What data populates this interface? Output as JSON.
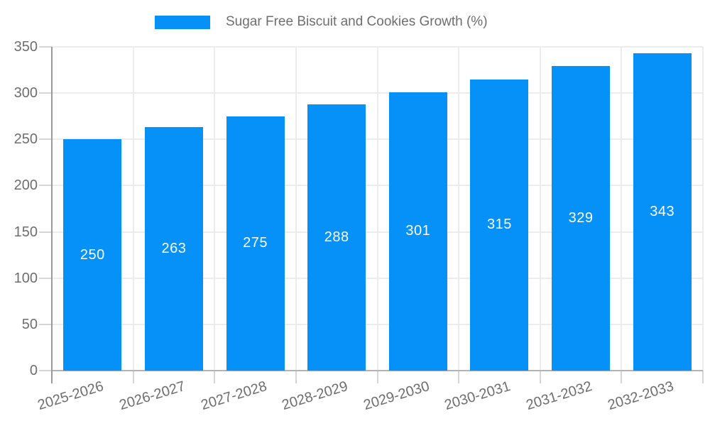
{
  "chart_data": {
    "type": "bar",
    "title": "Sugar Free Biscuit and Cookies Growth (%)",
    "legend": {
      "label": "Sugar Free Biscuit and Cookies Growth (%)",
      "position": "top-center"
    },
    "categories": [
      "2025-2026",
      "2026-2027",
      "2027-2028",
      "2028-2029",
      "2029-2030",
      "2030-2031",
      "2031-2032",
      "2032-2033"
    ],
    "values": [
      250,
      263,
      275,
      288,
      301,
      315,
      329,
      343
    ],
    "xlabel": "",
    "ylabel": "",
    "ylim": [
      0,
      350
    ],
    "yticks": [
      0,
      50,
      100,
      150,
      200,
      250,
      300,
      350
    ],
    "grid": "on",
    "value_label_position": "inside-center",
    "colors": {
      "bar": "#0591f8",
      "value_label": "#ffffff",
      "axis_text": "#6e6e6e",
      "grid_line": "#ececec",
      "tick_mark": "#d6d6d6",
      "y_axis_line": "#9a9a9a",
      "x_axis_line": "#b3b3b3",
      "background": "#ffffff"
    }
  }
}
